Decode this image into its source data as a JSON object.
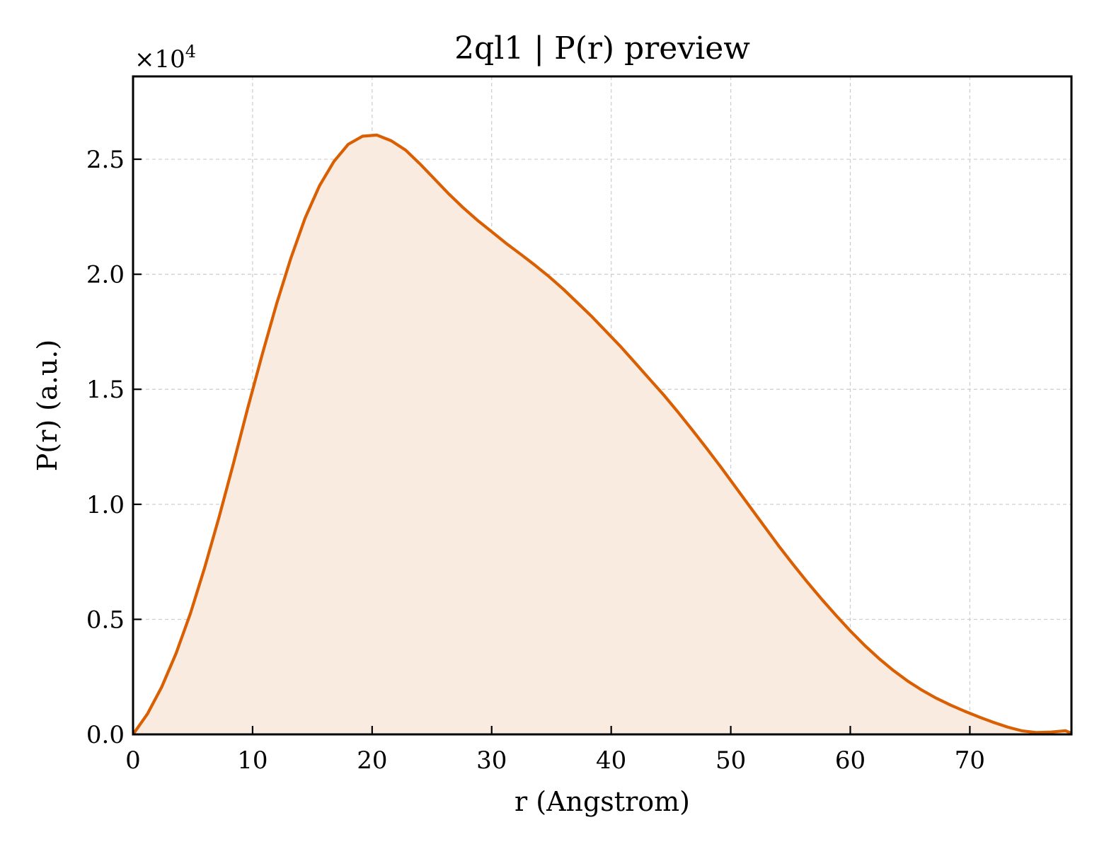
{
  "chart_data": {
    "type": "area",
    "title": "2ql1 | P(r) preview",
    "xlabel": "r (Angstrom)",
    "ylabel": "P(r) (a.u.)",
    "y_offset_label": "×10",
    "y_offset_exponent": "4",
    "xlim": [
      0,
      78.5
    ],
    "ylim": [
      0,
      2.86
    ],
    "x_ticks": [
      0,
      10,
      20,
      30,
      40,
      50,
      60,
      70
    ],
    "x_tick_labels": [
      "0",
      "10",
      "20",
      "30",
      "40",
      "50",
      "60",
      "70"
    ],
    "y_ticks": [
      0,
      0.5,
      1.0,
      1.5,
      2.0,
      2.5
    ],
    "y_tick_labels": [
      "0.0",
      "0.5",
      "1.0",
      "1.5",
      "2.0",
      "2.5"
    ],
    "grid": true,
    "colors": {
      "line": "#d95f02",
      "fill": "#f9ebe0"
    },
    "series": [
      {
        "x": [
          0,
          1.2,
          2.4,
          3.6,
          4.8,
          6,
          7.2,
          8.4,
          9.6,
          10.8,
          12,
          13.2,
          14.4,
          15.6,
          16.8,
          18,
          19.2,
          20.4,
          21.6,
          22.8,
          24,
          25.2,
          26.4,
          27.6,
          28.8,
          30,
          31.2,
          32.4,
          33.6,
          34.8,
          36,
          37.2,
          38.4,
          39.6,
          40.8,
          42,
          43.2,
          44.4,
          45.6,
          46.8,
          48,
          49.2,
          50.4,
          51.6,
          52.8,
          54,
          55.2,
          56.4,
          57.6,
          58.8,
          60,
          61.2,
          62.4,
          63.6,
          64.8,
          66,
          67.2,
          68.4,
          69.6,
          70.8,
          72,
          73.2,
          74.4,
          75.6,
          76.8,
          78,
          78.5
        ],
        "y": [
          0.0,
          0.089,
          0.206,
          0.352,
          0.526,
          0.727,
          0.945,
          1.178,
          1.42,
          1.65,
          1.87,
          2.07,
          2.245,
          2.385,
          2.49,
          2.565,
          2.6,
          2.605,
          2.58,
          2.54,
          2.48,
          2.415,
          2.35,
          2.29,
          2.235,
          2.185,
          2.135,
          2.088,
          2.04,
          1.99,
          1.935,
          1.875,
          1.815,
          1.75,
          1.685,
          1.615,
          1.545,
          1.475,
          1.4,
          1.322,
          1.242,
          1.16,
          1.075,
          0.99,
          0.905,
          0.82,
          0.74,
          0.662,
          0.588,
          0.518,
          0.45,
          0.387,
          0.33,
          0.278,
          0.232,
          0.192,
          0.157,
          0.127,
          0.1,
          0.075,
          0.052,
          0.031,
          0.015,
          0.008,
          0.01,
          0.016,
          0.005
        ]
      }
    ]
  }
}
